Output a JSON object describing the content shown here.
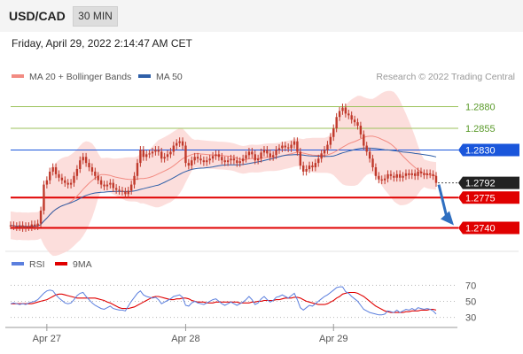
{
  "header": {
    "symbol": "USD/CAD",
    "timeframe": "30 MIN",
    "timestamp": "Friday, April 29, 2022 2:14:47 AM CET"
  },
  "credit": "Research © 2022 Trading Central",
  "colors": {
    "candle": "#c0392b",
    "ma20": "#f28b82",
    "bands_fill": "#fbd3d0",
    "ma50": "#2e5fa8",
    "support": "#e00000",
    "resistance_green": "#9bc25b",
    "pivot_blue": "#1a56db",
    "current": "#222222",
    "rsi": "#5b7fde",
    "rsi_ma": "#e00000",
    "arrow": "#2f6fc0"
  },
  "chart_data": [
    {
      "type": "candlestick",
      "legend": [
        {
          "name": "MA 20 + Bollinger Bands",
          "color": "#f28b82"
        },
        {
          "name": "MA 50",
          "color": "#2e5fa8"
        }
      ],
      "x_ticks": [
        "Apr 27",
        "Apr 28",
        "Apr 29"
      ],
      "ylim": [
        1.2715,
        1.2903
      ],
      "levels": [
        {
          "value": 1.288,
          "label": "1.2880",
          "kind": "resistance"
        },
        {
          "value": 1.2855,
          "label": "1.2855",
          "kind": "resistance"
        },
        {
          "value": 1.283,
          "label": "1.2830",
          "kind": "pivot"
        },
        {
          "value": 1.2792,
          "label": "1.2792",
          "kind": "current"
        },
        {
          "value": 1.2775,
          "label": "1.2775",
          "kind": "support"
        },
        {
          "value": 1.274,
          "label": "1.2740",
          "kind": "support"
        }
      ],
      "close": [
        1.2743,
        1.2742,
        1.2741,
        1.2743,
        1.274,
        1.2742,
        1.2741,
        1.2744,
        1.2742,
        1.2745,
        1.276,
        1.279,
        1.2795,
        1.2805,
        1.281,
        1.2802,
        1.2798,
        1.2795,
        1.2792,
        1.279,
        1.2792,
        1.28,
        1.2808,
        1.2818,
        1.2822,
        1.2815,
        1.281,
        1.2805,
        1.28,
        1.2795,
        1.279,
        1.2788,
        1.279,
        1.2792,
        1.2786,
        1.2784,
        1.2783,
        1.2782,
        1.2779,
        1.2783,
        1.279,
        1.28,
        1.2815,
        1.283,
        1.2822,
        1.2825,
        1.2826,
        1.2828,
        1.283,
        1.2828,
        1.282,
        1.2822,
        1.2825,
        1.2828,
        1.2835,
        1.2838,
        1.284,
        1.2835,
        1.2815,
        1.2812,
        1.2818,
        1.2822,
        1.282,
        1.2818,
        1.2816,
        1.2818,
        1.282,
        1.2823,
        1.2825,
        1.2822,
        1.2818,
        1.2816,
        1.2818,
        1.282,
        1.2818,
        1.2815,
        1.2817,
        1.282,
        1.2824,
        1.2828,
        1.2825,
        1.2818,
        1.282,
        1.2827,
        1.283,
        1.2826,
        1.2822,
        1.2824,
        1.283,
        1.2832,
        1.2835,
        1.2833,
        1.2832,
        1.2836,
        1.284,
        1.2828,
        1.2812,
        1.2805,
        1.2808,
        1.2812,
        1.281,
        1.2815,
        1.282,
        1.2826,
        1.283,
        1.2836,
        1.2845,
        1.2855,
        1.2868,
        1.2875,
        1.2879,
        1.2872,
        1.287,
        1.2865,
        1.2862,
        1.2858,
        1.2848,
        1.2835,
        1.2828,
        1.282,
        1.281,
        1.28,
        1.2796,
        1.2795,
        1.2797,
        1.2802,
        1.28,
        1.2798,
        1.2802,
        1.2798,
        1.28,
        1.2803,
        1.2801,
        1.2803,
        1.28,
        1.2805,
        1.2803,
        1.2801,
        1.2803,
        1.2802,
        1.28,
        1.2792
      ],
      "projection": {
        "from": 1.2792,
        "to": 1.274
      }
    },
    {
      "type": "line",
      "legend": [
        {
          "name": "RSI",
          "color": "#5b7fde"
        },
        {
          "name": "9MA",
          "color": "#e00000"
        }
      ],
      "ylim": [
        24,
        88
      ],
      "y_ticks": [
        70,
        50,
        30
      ],
      "rsi": [
        47,
        48,
        47,
        46,
        47,
        46,
        48,
        49,
        50,
        52,
        56,
        60,
        63,
        64,
        63,
        58,
        54,
        51,
        48,
        47,
        48,
        52,
        57,
        60,
        61,
        56,
        52,
        48,
        45,
        43,
        41,
        40,
        42,
        44,
        41,
        40,
        39,
        39,
        38,
        44,
        50,
        55,
        60,
        63,
        58,
        56,
        55,
        54,
        55,
        52,
        47,
        49,
        51,
        53,
        56,
        57,
        58,
        55,
        45,
        44,
        48,
        50,
        48,
        47,
        46,
        48,
        50,
        52,
        53,
        50,
        47,
        45,
        47,
        49,
        47,
        45,
        47,
        49,
        52,
        56,
        52,
        46,
        48,
        53,
        56,
        52,
        49,
        51,
        55,
        56,
        58,
        56,
        54,
        57,
        60,
        52,
        42,
        39,
        42,
        45,
        44,
        47,
        50,
        53,
        56,
        58,
        61,
        64,
        67,
        68,
        68,
        62,
        60,
        56,
        53,
        50,
        45,
        40,
        38,
        36,
        35,
        34,
        33,
        33,
        34,
        38,
        37,
        36,
        39,
        36,
        38,
        40,
        39,
        41,
        39,
        42,
        41,
        40,
        41,
        40,
        38,
        34
      ],
      "rsi_ma": [
        47,
        47,
        47,
        47,
        47,
        47,
        47,
        47,
        48,
        49,
        50,
        51,
        52,
        54,
        56,
        58,
        59,
        59,
        58,
        57,
        56,
        55,
        54,
        54,
        54,
        54,
        54,
        54,
        54,
        53,
        52,
        51,
        49,
        48,
        46,
        44,
        42,
        41,
        41,
        41,
        42,
        43,
        45,
        47,
        49,
        51,
        53,
        55,
        56,
        56,
        55,
        54,
        53,
        52,
        52,
        53,
        53,
        54,
        54,
        53,
        51,
        50,
        49,
        49,
        49,
        48,
        48,
        48,
        49,
        49,
        49,
        49,
        49,
        49,
        49,
        49,
        48,
        48,
        48,
        48,
        49,
        49,
        50,
        50,
        51,
        51,
        51,
        51,
        52,
        52,
        53,
        54,
        54,
        54,
        55,
        55,
        54,
        52,
        50,
        49,
        48,
        47,
        46,
        46,
        46,
        47,
        49,
        51,
        54,
        56,
        59,
        60,
        61,
        61,
        61,
        60,
        58,
        56,
        53,
        50,
        47,
        44,
        42,
        40,
        38,
        37,
        36,
        36,
        36,
        36,
        36,
        37,
        37,
        38,
        38,
        38,
        39,
        39,
        39,
        40,
        40,
        39
      ]
    }
  ]
}
